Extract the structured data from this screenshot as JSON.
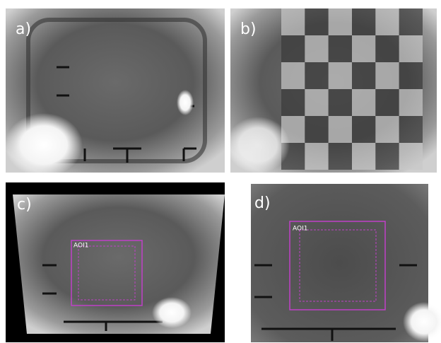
{
  "panels": [
    {
      "label": "a)"
    },
    {
      "label": "b)"
    },
    {
      "label": "c)",
      "aoi": "AOI1"
    },
    {
      "label": "d)",
      "aoi": "AOI1"
    }
  ]
}
